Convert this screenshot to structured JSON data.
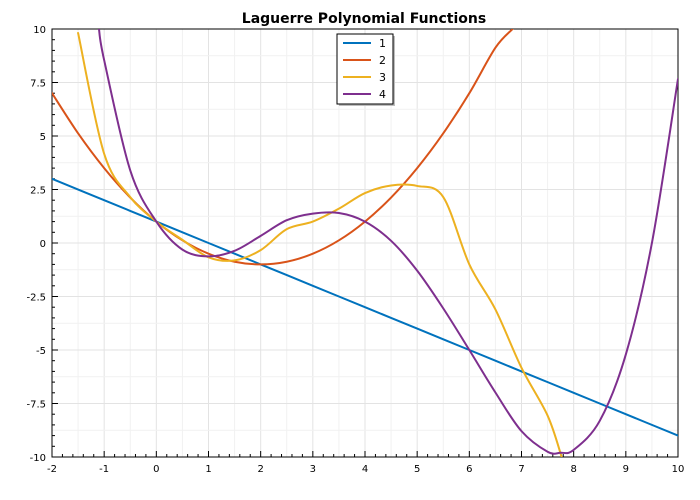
{
  "chart_data": {
    "type": "line",
    "title": "Laguerre Polynomial Functions",
    "xlabel": "",
    "ylabel": "",
    "xlim": [
      -2,
      10
    ],
    "ylim": [
      -10,
      10
    ],
    "grid": true,
    "legend_placement": "top-center",
    "x_ticks": [
      -2,
      -1,
      0,
      1,
      2,
      3,
      4,
      5,
      6,
      7,
      8,
      9,
      10
    ],
    "x_tick_labels": [
      "-2",
      "-1",
      "0",
      "1",
      "2",
      "3",
      "4",
      "5",
      "6",
      "7",
      "8",
      "9",
      "10"
    ],
    "y_ticks": [
      10,
      7.5,
      5,
      2.5,
      0,
      -2.5,
      -5,
      -7.5,
      -10
    ],
    "y_tick_labels": [
      "10",
      "7.5",
      "5",
      "2.5",
      "0",
      "-2.5",
      "-5",
      "-7.5",
      "-10"
    ],
    "series": [
      {
        "name": "1",
        "color": "#0072BD",
        "x": [
          -2,
          -1,
          0,
          1,
          2,
          3,
          4,
          5,
          6,
          7,
          8,
          9,
          10
        ],
        "y": [
          3,
          2,
          1,
          0,
          -1,
          -2,
          -3,
          -4,
          -5,
          -6,
          -7,
          -8,
          -9
        ]
      },
      {
        "name": "2",
        "color": "#D95319",
        "x": [
          -2,
          -1.5,
          -1,
          -0.5,
          0,
          0.5,
          1,
          1.5,
          2,
          2.5,
          3,
          3.5,
          4,
          4.5,
          5,
          5.5,
          6,
          6.5,
          6.83
        ],
        "y": [
          7,
          5.125,
          3.5,
          2.125,
          1,
          0.125,
          -0.5,
          -0.875,
          -1,
          -0.875,
          -0.5,
          0.125,
          1,
          2.125,
          3.5,
          5.125,
          7,
          9.125,
          10
        ]
      },
      {
        "name": "3",
        "color": "#EDB120",
        "x": [
          -1.5,
          -1,
          -0.5,
          0,
          0.5,
          1,
          1.5,
          2,
          2.5,
          3,
          3.5,
          4,
          4.5,
          5,
          5.5,
          6,
          6.5,
          7,
          7.5,
          7.77
        ],
        "y": [
          9.813,
          4.167,
          2.146,
          1,
          0.146,
          -0.667,
          -0.813,
          -0.333,
          0.646,
          1,
          1.604,
          2.333,
          2.688,
          2.667,
          2.146,
          -1,
          -3.104,
          -5.833,
          -8.063,
          -10
        ]
      },
      {
        "name": "4",
        "color": "#7E2F8E",
        "x": [
          -1.1,
          -1,
          -0.5,
          0,
          0.5,
          1,
          1.5,
          2,
          2.5,
          3,
          3.5,
          4,
          4.5,
          5,
          5.5,
          6,
          6.5,
          7,
          7.5,
          7.75,
          8,
          8.5,
          9,
          9.5,
          10
        ],
        "y": [
          10,
          8.542,
          3.393,
          1,
          -0.31,
          -0.625,
          -0.365,
          0.333,
          1.065,
          1.375,
          1.401,
          1,
          0.102,
          -1.292,
          -3.055,
          -5,
          -6.986,
          -8.792,
          -9.752,
          -9.8,
          -9.667,
          -8.31,
          -5.208,
          0.003,
          7.667
        ]
      }
    ]
  }
}
